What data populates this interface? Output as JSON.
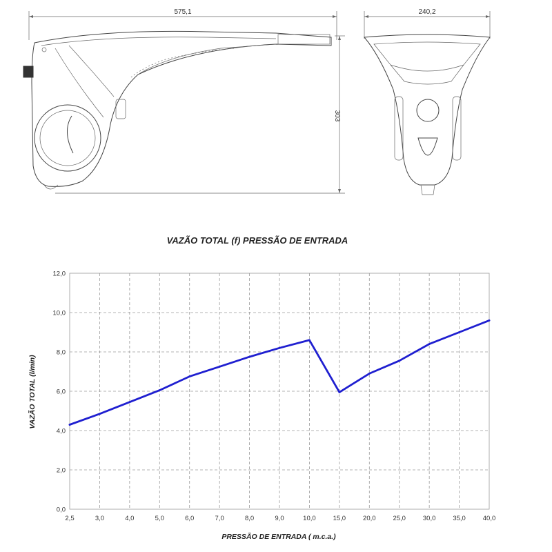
{
  "drawings": {
    "side_view": {
      "dimension_width": "575,1",
      "dimension_height": "303"
    },
    "front_view": {
      "dimension_width": "240,2"
    }
  },
  "colors": {
    "series": "#1f1fd0",
    "grid": "#9a9a9a",
    "text": "#222222"
  },
  "chart_data": {
    "type": "line",
    "title": "VAZÃO TOTAL (f) PRESSÃO DE ENTRADA",
    "xlabel": "PRESSÃO DE ENTRADA ( m.c.a.)",
    "ylabel": "VAZÃO TOTAL (l/min)",
    "x_scale": "categorical",
    "categories": [
      "2,5",
      "3,0",
      "4,0",
      "5,0",
      "6,0",
      "7,0",
      "8,0",
      "9,0",
      "10,0",
      "15,0",
      "20,0",
      "25,0",
      "30,0",
      "35,0",
      "40,0"
    ],
    "y_ticks": [
      "0,0",
      "2,0",
      "4,0",
      "6,0",
      "8,0",
      "10,0",
      "12,0"
    ],
    "ylim": [
      0,
      12
    ],
    "grid": true,
    "series": [
      {
        "values": [
          4.3,
          4.85,
          5.45,
          6.05,
          6.75,
          7.25,
          7.75,
          8.2,
          8.6,
          5.95,
          6.9,
          7.55,
          8.4,
          9.0,
          9.6
        ]
      }
    ]
  }
}
